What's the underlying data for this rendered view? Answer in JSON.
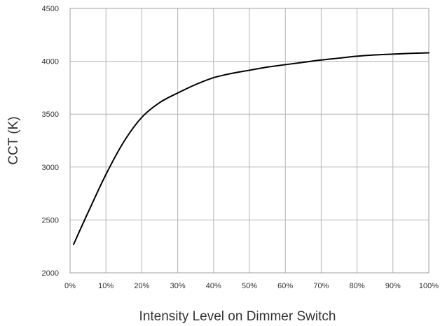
{
  "chart_data": {
    "type": "line",
    "title": "",
    "xlabel": "Intensity Level on Dimmer Switch",
    "ylabel": "CCT (K)",
    "x_ticks": [
      "0%",
      "10%",
      "20%",
      "30%",
      "40%",
      "50%",
      "60%",
      "70%",
      "80%",
      "90%",
      "100%"
    ],
    "y_ticks": [
      2000,
      2500,
      3000,
      3500,
      4000,
      4500
    ],
    "xlim": [
      0,
      100
    ],
    "ylim": [
      2000,
      4500
    ],
    "grid": true,
    "legend": "none",
    "series": [
      {
        "color": "#000000",
        "points": [
          [
            1,
            2270
          ],
          [
            5,
            2570
          ],
          [
            10,
            2930
          ],
          [
            15,
            3240
          ],
          [
            20,
            3470
          ],
          [
            25,
            3610
          ],
          [
            30,
            3700
          ],
          [
            35,
            3780
          ],
          [
            40,
            3845
          ],
          [
            45,
            3885
          ],
          [
            50,
            3915
          ],
          [
            55,
            3945
          ],
          [
            60,
            3968
          ],
          [
            65,
            3990
          ],
          [
            70,
            4012
          ],
          [
            75,
            4030
          ],
          [
            80,
            4048
          ],
          [
            85,
            4060
          ],
          [
            90,
            4068
          ],
          [
            95,
            4075
          ],
          [
            100,
            4080
          ]
        ]
      }
    ]
  }
}
